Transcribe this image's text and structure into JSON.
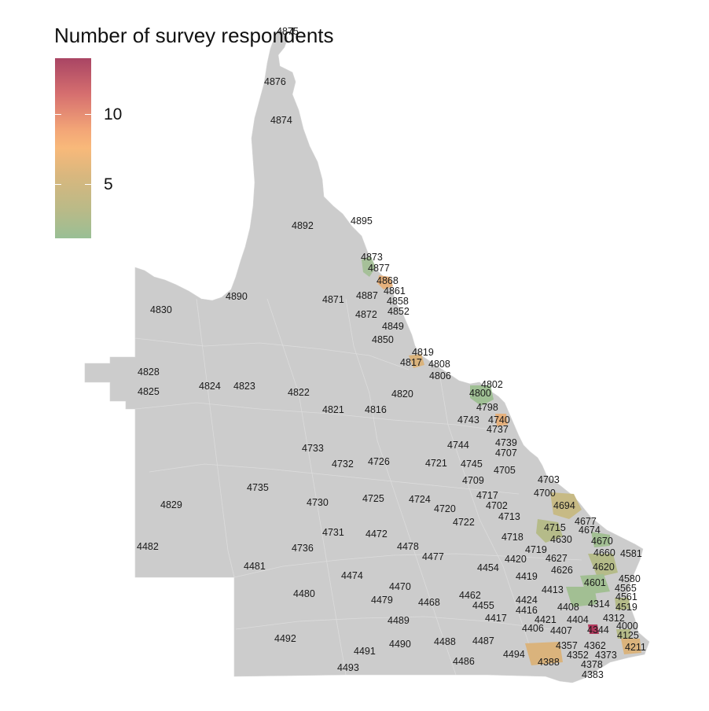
{
  "legend": {
    "title": "Number of survey respondents",
    "labels": [
      "10",
      "5"
    ],
    "min_value": 1,
    "max_value": 14,
    "label_values": [
      10,
      5
    ],
    "colors": [
      "#a94564",
      "#d66f6f",
      "#f3a677",
      "#f8b97a",
      "#d9b77e",
      "#b8ba88",
      "#99bf95"
    ]
  },
  "map": {
    "region": "Queensland postcodes",
    "land_color": "#cccccc",
    "postcodes": [
      {
        "code": "4875",
        "value": null
      },
      {
        "code": "4876",
        "value": null
      },
      {
        "code": "4874",
        "value": null
      },
      {
        "code": "4892",
        "value": null
      },
      {
        "code": "4895",
        "value": null
      },
      {
        "code": "4873",
        "value": 1
      },
      {
        "code": "4877",
        "value": null
      },
      {
        "code": "4868",
        "value": 6
      },
      {
        "code": "4861",
        "value": null
      },
      {
        "code": "4887",
        "value": null
      },
      {
        "code": "4858",
        "value": null
      },
      {
        "code": "4890",
        "value": null
      },
      {
        "code": "4871",
        "value": null
      },
      {
        "code": "4852",
        "value": null
      },
      {
        "code": "4830",
        "value": null
      },
      {
        "code": "4872",
        "value": null
      },
      {
        "code": "4849",
        "value": null
      },
      {
        "code": "4850",
        "value": null
      },
      {
        "code": "4819",
        "value": null
      },
      {
        "code": "4817",
        "value": 5
      },
      {
        "code": "4808",
        "value": null
      },
      {
        "code": "4806",
        "value": null
      },
      {
        "code": "4802",
        "value": null
      },
      {
        "code": "4828",
        "value": null
      },
      {
        "code": "4825",
        "value": null
      },
      {
        "code": "4824",
        "value": null
      },
      {
        "code": "4823",
        "value": null
      },
      {
        "code": "4822",
        "value": null
      },
      {
        "code": "4820",
        "value": null
      },
      {
        "code": "4800",
        "value": 1
      },
      {
        "code": "4821",
        "value": null
      },
      {
        "code": "4816",
        "value": null
      },
      {
        "code": "4798",
        "value": null
      },
      {
        "code": "4740",
        "value": 6
      },
      {
        "code": "4743",
        "value": null
      },
      {
        "code": "4737",
        "value": null
      },
      {
        "code": "4744",
        "value": null
      },
      {
        "code": "4739",
        "value": null
      },
      {
        "code": "4733",
        "value": null
      },
      {
        "code": "4707",
        "value": null
      },
      {
        "code": "4732",
        "value": null
      },
      {
        "code": "4726",
        "value": null
      },
      {
        "code": "4721",
        "value": null
      },
      {
        "code": "4745",
        "value": null
      },
      {
        "code": "4705",
        "value": null
      },
      {
        "code": "4709",
        "value": null
      },
      {
        "code": "4703",
        "value": null
      },
      {
        "code": "4735",
        "value": null
      },
      {
        "code": "4700",
        "value": null
      },
      {
        "code": "4717",
        "value": null
      },
      {
        "code": "4694",
        "value": 3
      },
      {
        "code": "4829",
        "value": null
      },
      {
        "code": "4730",
        "value": null
      },
      {
        "code": "4725",
        "value": null
      },
      {
        "code": "4724",
        "value": null
      },
      {
        "code": "4720",
        "value": null
      },
      {
        "code": "4702",
        "value": null
      },
      {
        "code": "4713",
        "value": null
      },
      {
        "code": "4677",
        "value": null
      },
      {
        "code": "4722",
        "value": null
      },
      {
        "code": "4715",
        "value": 2
      },
      {
        "code": "4674",
        "value": null
      },
      {
        "code": "4731",
        "value": null
      },
      {
        "code": "4472",
        "value": null
      },
      {
        "code": "4718",
        "value": null
      },
      {
        "code": "4630",
        "value": null
      },
      {
        "code": "4670",
        "value": 1
      },
      {
        "code": "4482",
        "value": null
      },
      {
        "code": "4736",
        "value": null
      },
      {
        "code": "4478",
        "value": null
      },
      {
        "code": "4719",
        "value": null
      },
      {
        "code": "4660",
        "value": null
      },
      {
        "code": "4581",
        "value": null
      },
      {
        "code": "4477",
        "value": null
      },
      {
        "code": "4420",
        "value": null
      },
      {
        "code": "4627",
        "value": null
      },
      {
        "code": "4481",
        "value": null
      },
      {
        "code": "4454",
        "value": null
      },
      {
        "code": "4620",
        "value": 2
      },
      {
        "code": "4626",
        "value": null
      },
      {
        "code": "4474",
        "value": null
      },
      {
        "code": "4419",
        "value": null
      },
      {
        "code": "4580",
        "value": null
      },
      {
        "code": "4601",
        "value": 1
      },
      {
        "code": "4470",
        "value": null
      },
      {
        "code": "4565",
        "value": null
      },
      {
        "code": "4480",
        "value": null
      },
      {
        "code": "4413",
        "value": null
      },
      {
        "code": "4462",
        "value": null
      },
      {
        "code": "4561",
        "value": null
      },
      {
        "code": "4479",
        "value": null
      },
      {
        "code": "4468",
        "value": null
      },
      {
        "code": "4424",
        "value": null
      },
      {
        "code": "4314",
        "value": null
      },
      {
        "code": "4455",
        "value": null
      },
      {
        "code": "4408",
        "value": null
      },
      {
        "code": "4519",
        "value": null
      },
      {
        "code": "4416",
        "value": null
      },
      {
        "code": "4312",
        "value": null
      },
      {
        "code": "4489",
        "value": null
      },
      {
        "code": "4417",
        "value": null
      },
      {
        "code": "4421",
        "value": null
      },
      {
        "code": "4404",
        "value": null
      },
      {
        "code": "4000",
        "value": null
      },
      {
        "code": "4406",
        "value": null
      },
      {
        "code": "4407",
        "value": null
      },
      {
        "code": "4344",
        "value": 14
      },
      {
        "code": "4125",
        "value": null
      },
      {
        "code": "4492",
        "value": null
      },
      {
        "code": "4490",
        "value": null
      },
      {
        "code": "4488",
        "value": null
      },
      {
        "code": "4487",
        "value": null
      },
      {
        "code": "4357",
        "value": null
      },
      {
        "code": "4362",
        "value": null
      },
      {
        "code": "4211",
        "value": 5
      },
      {
        "code": "4491",
        "value": null
      },
      {
        "code": "4494",
        "value": null
      },
      {
        "code": "4352",
        "value": null
      },
      {
        "code": "4373",
        "value": null
      },
      {
        "code": "4486",
        "value": null
      },
      {
        "code": "4388",
        "value": 5
      },
      {
        "code": "4378",
        "value": null
      },
      {
        "code": "4493",
        "value": null
      },
      {
        "code": "4383",
        "value": null
      }
    ]
  }
}
